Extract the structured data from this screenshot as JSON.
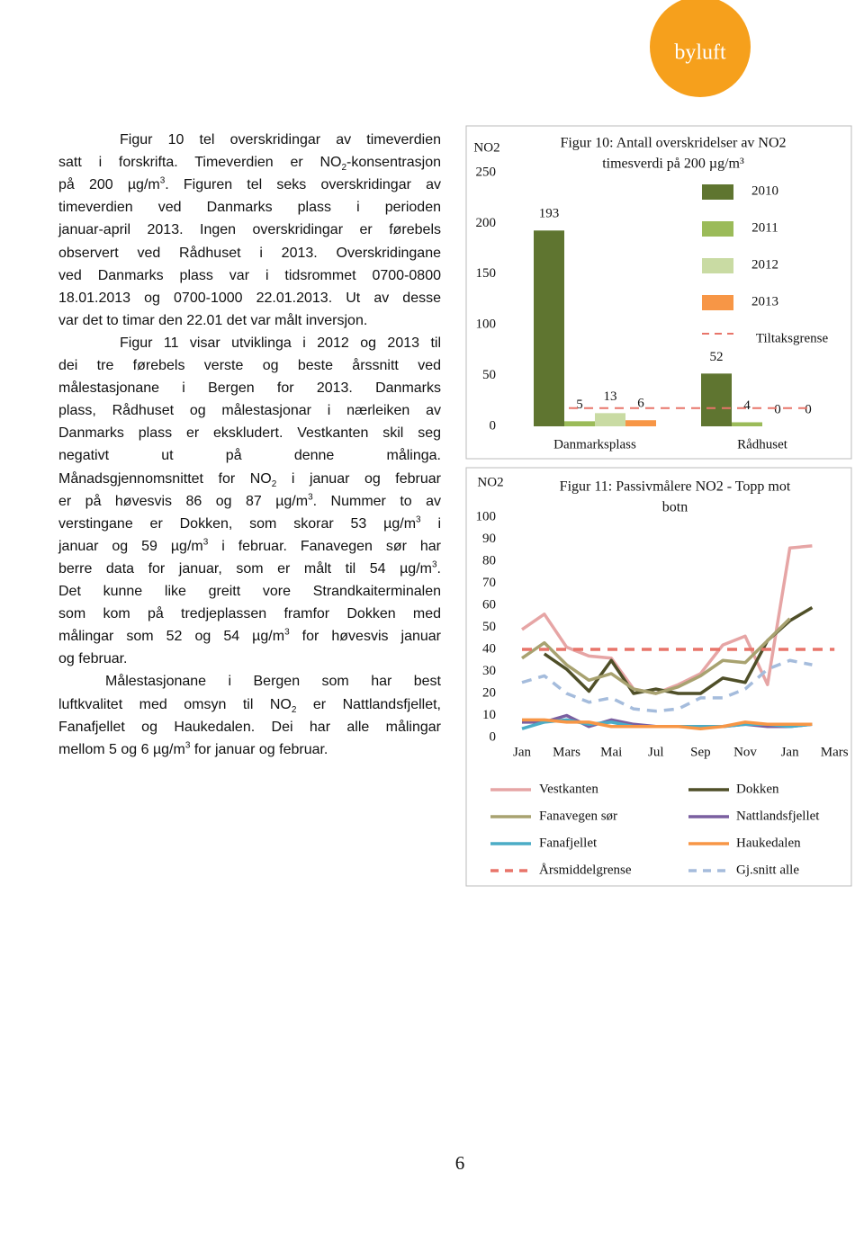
{
  "logo": "byluft",
  "text": {
    "paragraphs": [
      [
        [
          "Figur 10 tel overskridingar av timeverdien"
        ],
        [
          "satt i forskrifta. Timeverdien er NO",
          {
            "sub": "2"
          },
          "-konsentrasjon"
        ],
        [
          "på 200 µg/m",
          {
            "sup": "3"
          },
          ". Figuren tel seks overskridingar av"
        ],
        [
          "timeverdien ved Danmarks plass i perioden"
        ],
        [
          "januar-april 2013. Ingen overskridingar er førebels"
        ],
        [
          "observert ved Rådhuset i 2013. Overskridingane"
        ],
        [
          "ved Danmarks plass var i tidsrommet 0700-0800"
        ],
        [
          "18.01.2013 og 0700-1000 22.01.2013. Ut av desse"
        ],
        [
          "var det to timar den 22.01 det var målt inversjon."
        ]
      ],
      [
        [
          "Figur 11 visar utviklinga i 2012 og 2013 til"
        ],
        [
          "dei tre førebels verste og beste årssnitt ved"
        ],
        [
          "målestasjonane i Bergen for 2013. Danmarks"
        ],
        [
          "plass, Rådhuset og målestasjonar i nærleiken av"
        ],
        [
          "Danmarks plass er ekskludert. Vestkanten skil seg"
        ],
        [
          "negativt ut på denne målinga."
        ],
        [
          "Månadsgjennomsnittet for NO",
          {
            "sub": "2"
          },
          " i januar og februar"
        ],
        [
          "er på høvesvis 86 og 87 µg/m",
          {
            "sup": "3"
          },
          ". Nummer to av"
        ],
        [
          "verstingane er Dokken, som skorar 53 µg/m",
          {
            "sup": "3"
          },
          " i"
        ],
        [
          "januar og 59 µg/m",
          {
            "sup": "3"
          },
          " i februar. Fanavegen sør har"
        ],
        [
          "berre data for januar, som er målt til 54 µg/m",
          {
            "sup": "3"
          },
          "."
        ],
        [
          "Det kunne like greitt vore Strandkaiterminalen"
        ],
        [
          "som kom på tredjeplassen framfor Dokken med"
        ],
        [
          "målingar som 52 og 54 µg/m",
          {
            "sup": "3"
          },
          " for høvesvis januar"
        ],
        [
          "og februar."
        ]
      ],
      [
        [
          "Målestasjonane i Bergen som har best"
        ],
        [
          "luftkvalitet med omsyn til NO",
          {
            "sub": "2"
          },
          " er Nattlandsfjellet,"
        ],
        [
          "Fanafjellet og Haukedalen. Dei har alle målingar"
        ],
        [
          "mellom 5 og 6 µg/m",
          {
            "sup": "3"
          },
          " for januar og februar."
        ]
      ]
    ]
  },
  "page_number": "6",
  "chart_data": [
    {
      "type": "bar",
      "title": [
        "Figur 10: Antall overskridelser av NO2",
        "timesverdi på 200 µg/m³"
      ],
      "y_label": "NO2",
      "categories": [
        "Danmarksplass",
        "Rådhuset"
      ],
      "series": [
        {
          "name": "2010",
          "color": "#5f7530",
          "values": [
            193,
            52
          ]
        },
        {
          "name": "2011",
          "color": "#9bbb59",
          "values": [
            5,
            4
          ]
        },
        {
          "name": "2012",
          "color": "#c9dba3",
          "values": [
            13,
            0
          ]
        },
        {
          "name": "2013",
          "color": "#f79646",
          "values": [
            6,
            0
          ]
        }
      ],
      "reference_lines": [
        {
          "name": "Tiltaksgrense",
          "value": 18,
          "color": "#e8756a"
        }
      ],
      "ylim": [
        0,
        250
      ],
      "yticks": [
        0,
        50,
        100,
        150,
        200,
        250
      ],
      "data_labels": true,
      "legend": "right"
    },
    {
      "type": "line",
      "title": [
        "Figur 11: Passivmålere NO2 - Topp mot",
        "botn"
      ],
      "y_label": "NO2",
      "categories": [
        "Jan",
        null,
        "Mars",
        null,
        "Mai",
        null,
        "Jul",
        null,
        "Sep",
        null,
        "Nov",
        null,
        "Jan",
        null,
        "Mars"
      ],
      "series": [
        {
          "name": "Vestkanten",
          "color": "#e6a5a5",
          "values": [
            49,
            56,
            41,
            37,
            36,
            22,
            20,
            24,
            29,
            42,
            46,
            24,
            86,
            87,
            null
          ]
        },
        {
          "name": "Dokken",
          "color": "#4f4f28",
          "values": [
            null,
            38,
            31,
            21,
            35,
            20,
            22,
            20,
            20,
            27,
            25,
            44,
            53,
            59,
            null
          ]
        },
        {
          "name": "Fanavegen sør",
          "color": "#a8a270",
          "values": [
            36,
            43,
            33,
            26,
            29,
            22,
            20,
            23,
            28,
            35,
            34,
            44,
            54,
            null,
            null
          ]
        },
        {
          "name": "Nattlandsfjellet",
          "color": "#7a5fa0",
          "values": [
            7,
            7,
            10,
            5,
            8,
            6,
            5,
            5,
            5,
            5,
            6,
            5,
            5,
            6,
            null
          ]
        },
        {
          "name": "Fanafjellet",
          "color": "#4bacc6",
          "values": [
            4,
            7,
            8,
            6,
            7,
            5,
            5,
            5,
            5,
            5,
            6,
            6,
            5,
            6,
            null
          ]
        },
        {
          "name": "Haukedalen",
          "color": "#f79646",
          "values": [
            8,
            8,
            7,
            7,
            5,
            5,
            5,
            5,
            4,
            5,
            7,
            6,
            6,
            6,
            null
          ]
        },
        {
          "name": "Årsmiddelgrense",
          "color": "#e8756a",
          "dash": true,
          "values": [
            40,
            40,
            40,
            40,
            40,
            40,
            40,
            40,
            40,
            40,
            40,
            40,
            40,
            40,
            40
          ]
        },
        {
          "name": "Gj.snitt alle",
          "color": "#a5bcdc",
          "dash": true,
          "values": [
            25,
            28,
            20,
            16,
            18,
            13,
            12,
            13,
            18,
            18,
            22,
            31,
            35,
            33,
            null
          ]
        }
      ],
      "ylim": [
        0,
        100
      ],
      "yticks": [
        0,
        10,
        20,
        30,
        40,
        50,
        60,
        70,
        80,
        90,
        100
      ],
      "legend": "bottom"
    }
  ]
}
